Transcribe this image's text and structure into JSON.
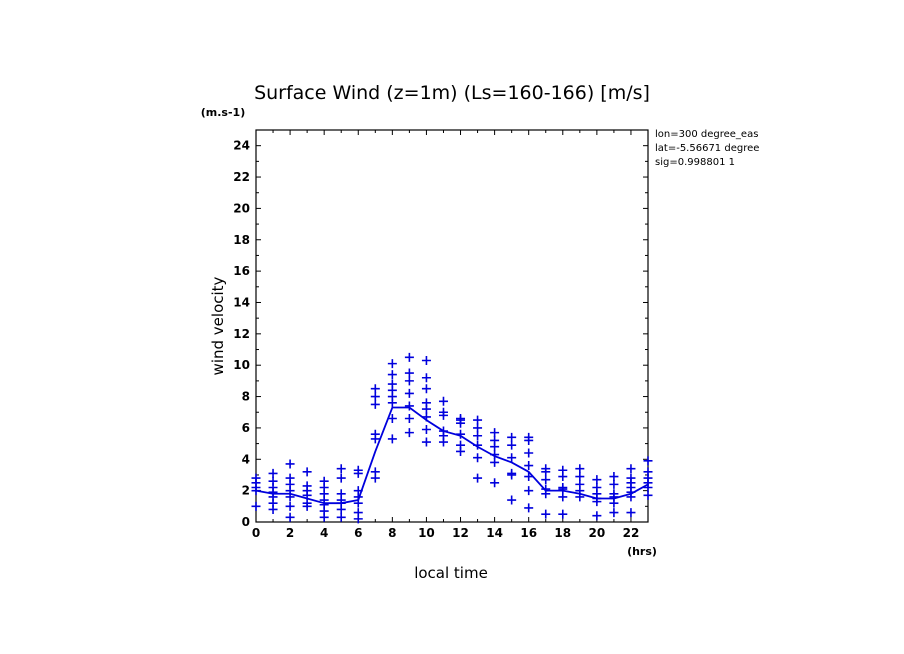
{
  "chart_data": {
    "type": "scatter",
    "title": "Surface Wind (z=1m) (Ls=160-166) [m/s]",
    "y_unit": "(m.s-1)",
    "x_unit": "(hrs)",
    "xlabel": "local time",
    "ylabel": "wind velocity",
    "xlim": [
      0,
      23
    ],
    "ylim": [
      0,
      25
    ],
    "x_ticks": [
      "0",
      "2",
      "4",
      "6",
      "8",
      "10",
      "12",
      "14",
      "16",
      "18",
      "20",
      "22"
    ],
    "y_ticks": [
      "0",
      "2",
      "4",
      "6",
      "8",
      "10",
      "12",
      "14",
      "16",
      "18",
      "20",
      "22",
      "24"
    ],
    "grid": false,
    "legend": "none",
    "annotations": [
      "lon=300 degree_eas",
      "lat=-5.56671 degree",
      "sig=0.998801 1"
    ],
    "colors": {
      "data": "#0000dd",
      "axes": "#000000"
    },
    "series": [
      {
        "type": "line",
        "x": [
          0,
          1,
          2,
          3,
          4,
          5,
          6,
          7,
          8,
          9,
          10,
          11,
          12,
          13,
          14,
          15,
          16,
          17,
          18,
          19,
          20,
          21,
          22,
          23
        ],
        "y": [
          2.0,
          1.8,
          1.8,
          1.5,
          1.2,
          1.2,
          1.4,
          4.5,
          7.3,
          7.3,
          6.5,
          5.8,
          5.5,
          4.8,
          4.2,
          3.8,
          3.2,
          2.0,
          2.0,
          1.8,
          1.5,
          1.5,
          1.8,
          2.4
        ]
      },
      {
        "type": "scatter",
        "points": [
          [
            0,
            2.8
          ],
          [
            0,
            2.5
          ],
          [
            0,
            2.2
          ],
          [
            0,
            2.0
          ],
          [
            0,
            1.0
          ],
          [
            1,
            3.1
          ],
          [
            1,
            2.6
          ],
          [
            1,
            2.2
          ],
          [
            1,
            1.9
          ],
          [
            1,
            1.6
          ],
          [
            1,
            1.2
          ],
          [
            1,
            0.8
          ],
          [
            2,
            3.7
          ],
          [
            2,
            2.8
          ],
          [
            2,
            2.4
          ],
          [
            2,
            2.0
          ],
          [
            2,
            1.6
          ],
          [
            2,
            1.0
          ],
          [
            2,
            0.3
          ],
          [
            3,
            3.2
          ],
          [
            3,
            2.3
          ],
          [
            3,
            2.0
          ],
          [
            3,
            1.7
          ],
          [
            3,
            1.2
          ],
          [
            3,
            1.0
          ],
          [
            4,
            2.6
          ],
          [
            4,
            2.2
          ],
          [
            4,
            1.8
          ],
          [
            4,
            1.4
          ],
          [
            4,
            1.1
          ],
          [
            4,
            0.7
          ],
          [
            4,
            0.3
          ],
          [
            5,
            3.4
          ],
          [
            5,
            2.8
          ],
          [
            5,
            1.8
          ],
          [
            5,
            1.4
          ],
          [
            5,
            1.2
          ],
          [
            5,
            0.8
          ],
          [
            5,
            0.3
          ],
          [
            6,
            3.3
          ],
          [
            6,
            3.1
          ],
          [
            6,
            2.0
          ],
          [
            6,
            1.6
          ],
          [
            6,
            1.2
          ],
          [
            6,
            0.6
          ],
          [
            6,
            0.2
          ],
          [
            7,
            8.5
          ],
          [
            7,
            8.0
          ],
          [
            7,
            7.5
          ],
          [
            7,
            5.6
          ],
          [
            7,
            5.3
          ],
          [
            7,
            3.2
          ],
          [
            7,
            2.8
          ],
          [
            8,
            10.1
          ],
          [
            8,
            9.4
          ],
          [
            8,
            8.8
          ],
          [
            8,
            8.4
          ],
          [
            8,
            8.0
          ],
          [
            8,
            7.6
          ],
          [
            8,
            6.6
          ],
          [
            8,
            5.3
          ],
          [
            9,
            10.5
          ],
          [
            9,
            9.5
          ],
          [
            9,
            9.0
          ],
          [
            9,
            8.2
          ],
          [
            9,
            7.4
          ],
          [
            9,
            6.6
          ],
          [
            9,
            5.7
          ],
          [
            10,
            10.3
          ],
          [
            10,
            9.2
          ],
          [
            10,
            8.5
          ],
          [
            10,
            7.6
          ],
          [
            10,
            7.2
          ],
          [
            10,
            6.7
          ],
          [
            10,
            5.9
          ],
          [
            10,
            5.1
          ],
          [
            11,
            7.7
          ],
          [
            11,
            7.0
          ],
          [
            11,
            6.8
          ],
          [
            11,
            5.8
          ],
          [
            11,
            5.5
          ],
          [
            11,
            5.1
          ],
          [
            12,
            6.6
          ],
          [
            12,
            6.5
          ],
          [
            12,
            6.3
          ],
          [
            12,
            5.6
          ],
          [
            12,
            4.9
          ],
          [
            12,
            4.5
          ],
          [
            13,
            6.5
          ],
          [
            13,
            6.0
          ],
          [
            13,
            5.5
          ],
          [
            13,
            4.9
          ],
          [
            13,
            4.1
          ],
          [
            13,
            2.8
          ],
          [
            14,
            5.7
          ],
          [
            14,
            5.2
          ],
          [
            14,
            4.8
          ],
          [
            14,
            4.3
          ],
          [
            14,
            3.8
          ],
          [
            14,
            2.5
          ],
          [
            15,
            5.4
          ],
          [
            15,
            4.9
          ],
          [
            15,
            4.1
          ],
          [
            15,
            3.1
          ],
          [
            15,
            3.0
          ],
          [
            15,
            1.4
          ],
          [
            16,
            5.4
          ],
          [
            16,
            5.2
          ],
          [
            16,
            4.4
          ],
          [
            16,
            3.6
          ],
          [
            16,
            2.9
          ],
          [
            16,
            2.0
          ],
          [
            16,
            0.9
          ],
          [
            17,
            3.4
          ],
          [
            17,
            3.2
          ],
          [
            17,
            2.7
          ],
          [
            17,
            2.1
          ],
          [
            17,
            1.8
          ],
          [
            17,
            0.5
          ],
          [
            18,
            3.3
          ],
          [
            18,
            2.9
          ],
          [
            18,
            2.2
          ],
          [
            18,
            2.1
          ],
          [
            18,
            1.6
          ],
          [
            18,
            0.5
          ],
          [
            19,
            3.4
          ],
          [
            19,
            2.9
          ],
          [
            19,
            2.4
          ],
          [
            19,
            2.0
          ],
          [
            19,
            1.6
          ],
          [
            20,
            2.7
          ],
          [
            20,
            2.2
          ],
          [
            20,
            1.8
          ],
          [
            20,
            1.5
          ],
          [
            20,
            1.3
          ],
          [
            20,
            0.4
          ],
          [
            21,
            2.9
          ],
          [
            21,
            2.4
          ],
          [
            21,
            1.8
          ],
          [
            21,
            1.6
          ],
          [
            21,
            1.2
          ],
          [
            21,
            0.6
          ],
          [
            22,
            3.4
          ],
          [
            22,
            2.8
          ],
          [
            22,
            2.5
          ],
          [
            22,
            2.2
          ],
          [
            22,
            1.9
          ],
          [
            22,
            1.6
          ],
          [
            22,
            0.6
          ],
          [
            23,
            3.9
          ],
          [
            23,
            3.2
          ],
          [
            23,
            2.8
          ],
          [
            23,
            2.5
          ],
          [
            23,
            2.2
          ],
          [
            23,
            1.7
          ]
        ]
      }
    ]
  }
}
